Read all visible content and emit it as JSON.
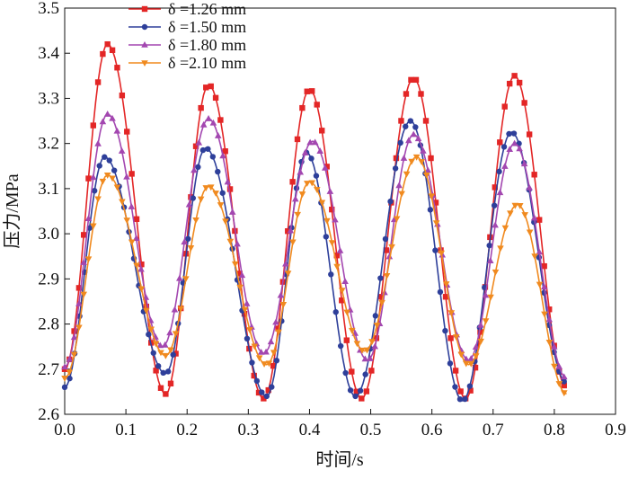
{
  "chart_data": {
    "type": "line",
    "title": "",
    "xlabel": "时间/s",
    "ylabel": "压力/MPa",
    "xlim": [
      0.0,
      0.9
    ],
    "ylim": [
      2.6,
      3.5
    ],
    "xticks": [
      "0.0",
      "0.1",
      "0.2",
      "0.3",
      "0.4",
      "0.5",
      "0.6",
      "0.7",
      "0.8",
      "0.9"
    ],
    "yticks": [
      "2.6",
      "2.7",
      "2.8",
      "2.9",
      "3.0",
      "3.1",
      "3.2",
      "3.3",
      "3.4",
      "3.5"
    ],
    "legend_position": "top-left",
    "series": [
      {
        "name": "δ =1.26 mm",
        "color": "#e32626",
        "marker": "square",
        "peaks": [
          [
            0.07,
            3.42
          ],
          [
            0.235,
            3.33
          ],
          [
            0.4,
            3.32
          ],
          [
            0.57,
            3.345
          ],
          [
            0.735,
            3.35
          ]
        ],
        "troughs": [
          [
            0.0,
            2.7
          ],
          [
            0.165,
            2.645
          ],
          [
            0.325,
            2.635
          ],
          [
            0.485,
            2.635
          ],
          [
            0.655,
            2.635
          ],
          [
            0.82,
            2.66
          ]
        ]
      },
      {
        "name": "δ =1.50 mm",
        "color": "#2e3f9a",
        "marker": "circle",
        "peaks": [
          [
            0.065,
            3.17
          ],
          [
            0.23,
            3.19
          ],
          [
            0.395,
            3.18
          ],
          [
            0.565,
            3.25
          ],
          [
            0.73,
            3.225
          ]
        ],
        "troughs": [
          [
            0.0,
            2.66
          ],
          [
            0.165,
            2.69
          ],
          [
            0.33,
            2.64
          ],
          [
            0.475,
            2.64
          ],
          [
            0.65,
            2.63
          ],
          [
            0.82,
            2.67
          ]
        ]
      },
      {
        "name": "δ =1.80 mm",
        "color": "#a347b0",
        "marker": "triangle-up",
        "peaks": [
          [
            0.07,
            3.265
          ],
          [
            0.235,
            3.255
          ],
          [
            0.405,
            3.205
          ],
          [
            0.57,
            3.22
          ],
          [
            0.735,
            3.2
          ]
        ],
        "troughs": [
          [
            0.0,
            2.705
          ],
          [
            0.16,
            2.75
          ],
          [
            0.325,
            2.735
          ],
          [
            0.495,
            2.72
          ],
          [
            0.66,
            2.72
          ],
          [
            0.82,
            2.68
          ]
        ]
      },
      {
        "name": "δ =2.10 mm",
        "color": "#f08a1f",
        "marker": "triangle-down",
        "peaks": [
          [
            0.07,
            3.13
          ],
          [
            0.235,
            3.105
          ],
          [
            0.4,
            3.115
          ],
          [
            0.575,
            3.17
          ],
          [
            0.74,
            3.065
          ]
        ],
        "troughs": [
          [
            0.0,
            2.68
          ],
          [
            0.165,
            2.73
          ],
          [
            0.33,
            2.71
          ],
          [
            0.49,
            2.74
          ],
          [
            0.66,
            2.71
          ],
          [
            0.82,
            2.645
          ]
        ]
      }
    ]
  }
}
